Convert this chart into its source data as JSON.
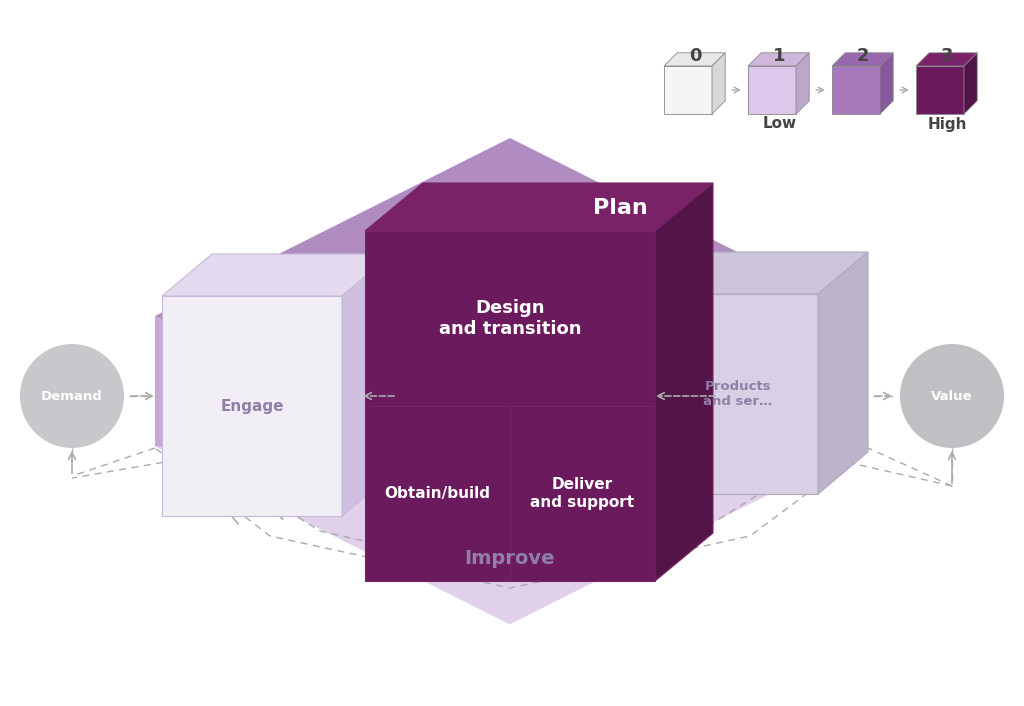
{
  "bg_color": "#ffffff",
  "colors": {
    "plan_color": "#b08cc0",
    "left_face_color": "#c8a8d8",
    "right_face_color": "#ddd0ea",
    "improve_color": "#e0d0ec",
    "center_front": "#6b1a5e",
    "center_top": "#7a2268",
    "center_right": "#531548",
    "engage_front": "#f2eef6",
    "engage_top": "#e4daf0",
    "engage_right": "#d0c0e0",
    "products_front": "#d8d0e4",
    "products_top": "#ccc4d8",
    "products_right": "#bdb4cc",
    "demand_fill": "#c8c8cc",
    "value_fill": "#c0c0c4",
    "arrow_color": "#aaaaaa",
    "text_white": "#ffffff",
    "text_purple": "#9080a8",
    "text_dark": "#444444"
  },
  "plan_label": "Plan",
  "improve_label": "Improve",
  "engage_label": "Engage",
  "products_label": "Products\nand ser…",
  "demand_label": "Demand",
  "value_label": "Value",
  "center_top_label": "Design\nand transition",
  "center_bl_label": "Obtain/build",
  "center_br_label": "Deliver\nand support",
  "legend_numbers": [
    "0",
    "1",
    "2",
    "3"
  ],
  "legend_low": "Low",
  "legend_high": "High",
  "legend_cube_colors": [
    {
      "face": "#f5f5f5",
      "top": "#e8e8e8",
      "side": "#d8d8d8"
    },
    {
      "face": "#ddc8ec",
      "top": "#cdb8dc",
      "side": "#bda8cc"
    },
    {
      "face": "#a878bc",
      "top": "#9868ac",
      "side": "#88589c"
    },
    {
      "face": "#6b1a5e",
      "top": "#7a2268",
      "side": "#531548"
    }
  ]
}
